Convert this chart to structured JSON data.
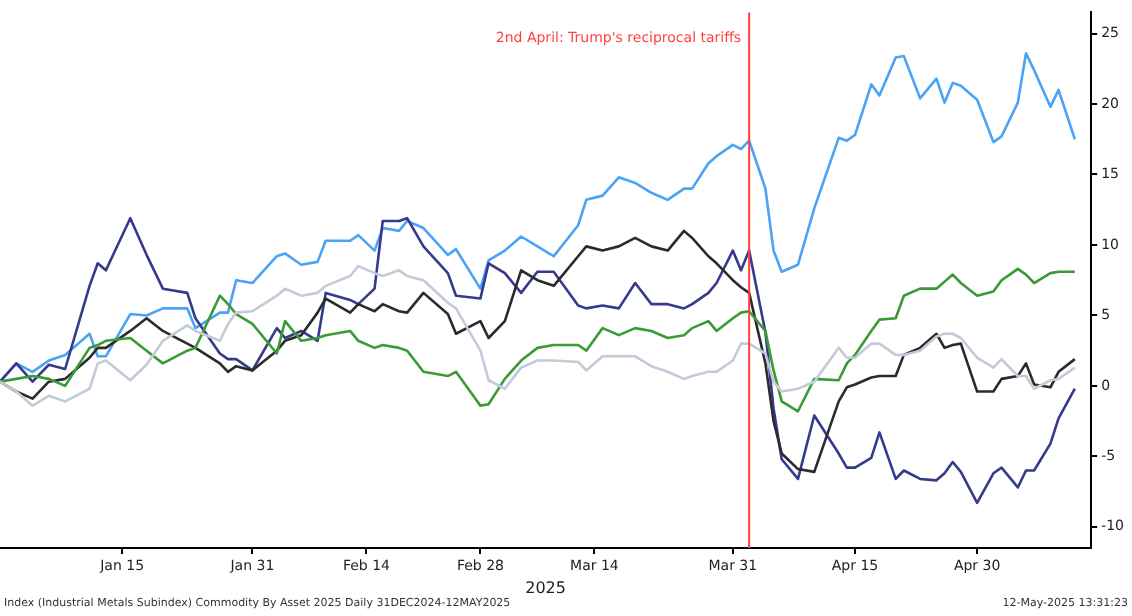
{
  "chart_data": {
    "type": "line",
    "x": [
      "2024-12-31",
      "2025-01-02",
      "2025-01-04",
      "2025-01-06",
      "2025-01-08",
      "2025-01-11",
      "2025-01-12",
      "2025-01-13",
      "2025-01-16",
      "2025-01-18",
      "2025-01-20",
      "2025-01-23",
      "2025-01-24",
      "2025-01-27",
      "2025-01-28",
      "2025-01-29",
      "2025-01-31",
      "2025-02-03",
      "2025-02-04",
      "2025-02-06",
      "2025-02-08",
      "2025-02-09",
      "2025-02-12",
      "2025-02-13",
      "2025-02-15",
      "2025-02-16",
      "2025-02-18",
      "2025-02-19",
      "2025-02-21",
      "2025-02-24",
      "2025-02-25",
      "2025-02-28",
      "2025-03-01",
      "2025-03-03",
      "2025-03-05",
      "2025-03-07",
      "2025-03-09",
      "2025-03-12",
      "2025-03-13",
      "2025-03-15",
      "2025-03-17",
      "2025-03-19",
      "2025-03-21",
      "2025-03-23",
      "2025-03-25",
      "2025-03-26",
      "2025-03-28",
      "2025-03-29",
      "2025-03-31",
      "2025-04-01",
      "2025-04-02",
      "2025-04-04",
      "2025-04-05",
      "2025-04-06",
      "2025-04-08",
      "2025-04-10",
      "2025-04-13",
      "2025-04-14",
      "2025-04-15",
      "2025-04-17",
      "2025-04-18",
      "2025-04-20",
      "2025-04-21",
      "2025-04-23",
      "2025-04-25",
      "2025-04-26",
      "2025-04-27",
      "2025-04-28",
      "2025-04-30",
      "2025-05-02",
      "2025-05-03",
      "2025-05-05",
      "2025-05-06",
      "2025-05-07",
      "2025-05-09",
      "2025-05-10",
      "2025-05-12"
    ],
    "series": [
      {
        "color": "#c3cad8",
        "values": [
          0.3,
          -0.4,
          -1.4,
          -0.7,
          -1.1,
          -0.2,
          1.6,
          1.8,
          0.4,
          1.5,
          3.2,
          4.3,
          3.9,
          3.2,
          4.4,
          5.2,
          5.3,
          6.4,
          6.9,
          6.4,
          6.6,
          7.1,
          7.8,
          8.5,
          8.0,
          7.8,
          8.2,
          7.8,
          7.5,
          5.9,
          5.5,
          2.5,
          0.4,
          -0.2,
          1.3,
          1.8,
          1.8,
          1.7,
          1.1,
          2.1,
          2.1,
          2.1,
          1.4,
          1.0,
          0.5,
          0.7,
          1.0,
          1.0,
          1.8,
          3.0,
          3.0,
          2.3,
          0.3,
          -0.4,
          -0.2,
          0.3,
          2.7,
          2.0,
          2.0,
          3.0,
          3.0,
          2.2,
          2.2,
          2.5,
          3.5,
          3.7,
          3.7,
          3.4,
          2.0,
          1.3,
          1.9,
          0.7,
          0.7,
          -0.2,
          0.4,
          0.5,
          1.3
        ]
      },
      {
        "color": "#3a9a36",
        "values": [
          0.3,
          0.5,
          0.7,
          0.5,
          0.0,
          2.7,
          2.9,
          3.2,
          3.4,
          2.5,
          1.6,
          2.5,
          2.7,
          6.4,
          5.8,
          5.1,
          4.4,
          2.3,
          4.6,
          3.2,
          3.4,
          3.6,
          3.9,
          3.2,
          2.7,
          2.9,
          2.7,
          2.5,
          1.0,
          0.7,
          1.0,
          -1.4,
          -1.3,
          0.5,
          1.8,
          2.7,
          2.9,
          2.9,
          2.5,
          4.1,
          3.6,
          4.1,
          3.9,
          3.4,
          3.6,
          4.1,
          4.6,
          3.9,
          4.8,
          5.2,
          5.3,
          3.9,
          1.1,
          -1.1,
          -1.8,
          0.5,
          0.4,
          1.6,
          2.2,
          3.9,
          4.7,
          4.8,
          6.4,
          6.9,
          6.9,
          7.4,
          7.9,
          7.3,
          6.4,
          6.7,
          7.5,
          8.3,
          7.9,
          7.3,
          8.0,
          8.1,
          8.1
        ]
      },
      {
        "color": "#2b2b2e",
        "values": [
          0.3,
          -0.4,
          -0.9,
          0.3,
          0.5,
          2.0,
          2.7,
          2.7,
          3.9,
          4.8,
          3.9,
          3.0,
          2.7,
          1.6,
          1.0,
          1.4,
          1.1,
          2.5,
          3.2,
          3.6,
          5.2,
          6.2,
          5.2,
          5.8,
          5.3,
          5.8,
          5.3,
          5.2,
          6.6,
          5.1,
          3.7,
          4.6,
          3.4,
          4.6,
          8.2,
          7.5,
          7.1,
          9.2,
          9.9,
          9.6,
          9.9,
          10.5,
          9.9,
          9.6,
          11.0,
          10.5,
          9.2,
          8.7,
          7.5,
          7.0,
          6.6,
          1.6,
          -2.5,
          -4.8,
          -5.9,
          -6.1,
          -1.1,
          -0.1,
          0.1,
          0.6,
          0.7,
          0.7,
          2.2,
          2.7,
          3.7,
          2.7,
          2.9,
          3.0,
          -0.4,
          -0.4,
          0.5,
          0.7,
          1.6,
          0.1,
          -0.1,
          1.0,
          1.9
        ]
      },
      {
        "color": "#363a8c",
        "values": [
          0.3,
          1.6,
          0.3,
          1.5,
          1.2,
          7.1,
          8.7,
          8.2,
          11.9,
          9.3,
          6.9,
          6.6,
          4.8,
          2.3,
          1.9,
          1.9,
          1.1,
          4.1,
          3.4,
          3.9,
          3.2,
          6.6,
          6.1,
          5.8,
          6.9,
          11.7,
          11.7,
          11.9,
          9.9,
          8.0,
          6.4,
          6.2,
          8.7,
          8.0,
          6.6,
          8.1,
          8.1,
          5.7,
          5.5,
          5.7,
          5.5,
          7.3,
          5.8,
          5.8,
          5.5,
          5.8,
          6.6,
          7.3,
          9.6,
          8.2,
          9.6,
          3.8,
          -1.6,
          -5.2,
          -6.6,
          -2.1,
          -4.8,
          -5.8,
          -5.8,
          -5.1,
          -3.3,
          -6.6,
          -6.0,
          -6.6,
          -6.7,
          -6.2,
          -5.4,
          -6.1,
          -8.3,
          -6.2,
          -5.8,
          -7.2,
          -6.0,
          -6.0,
          -4.1,
          -2.3,
          -0.2
        ]
      },
      {
        "color": "#4aa3f5",
        "values": [
          0.3,
          1.6,
          1.0,
          1.8,
          2.2,
          3.7,
          2.1,
          2.1,
          5.1,
          5.0,
          5.5,
          5.5,
          4.1,
          5.2,
          5.2,
          7.5,
          7.3,
          9.2,
          9.4,
          8.6,
          8.8,
          10.3,
          10.3,
          10.7,
          9.6,
          11.2,
          11.0,
          11.7,
          11.2,
          9.3,
          9.7,
          6.9,
          8.9,
          9.6,
          10.6,
          9.9,
          9.2,
          11.4,
          13.2,
          13.5,
          14.8,
          14.4,
          13.7,
          13.2,
          14.0,
          14.0,
          15.8,
          16.3,
          17.1,
          16.8,
          17.4,
          14.0,
          9.6,
          8.1,
          8.6,
          12.6,
          17.6,
          17.4,
          17.8,
          21.4,
          20.6,
          23.3,
          23.4,
          20.4,
          21.8,
          20.1,
          21.5,
          21.3,
          20.3,
          17.3,
          17.7,
          20.1,
          23.6,
          22.4,
          19.8,
          21.0,
          17.5
        ]
      }
    ],
    "xlabel": "2025",
    "xlim": [
      "2024-12-31",
      "2025-05-14"
    ],
    "xticks": [
      {
        "value": "2025-01-15",
        "label": "Jan 15"
      },
      {
        "value": "2025-01-31",
        "label": "Jan 31"
      },
      {
        "value": "2025-02-14",
        "label": "Feb 14"
      },
      {
        "value": "2025-02-28",
        "label": "Feb 28"
      },
      {
        "value": "2025-03-14",
        "label": "Mar 14"
      },
      {
        "value": "2025-03-31",
        "label": "Mar 31"
      },
      {
        "value": "2025-04-15",
        "label": "Apr 15"
      },
      {
        "value": "2025-04-30",
        "label": "Apr 30"
      }
    ],
    "ylim": [
      -11.5,
      26.5
    ],
    "yticks": [
      {
        "value": 25,
        "label": "25"
      },
      {
        "value": 20,
        "label": "20"
      },
      {
        "value": 15,
        "label": "15"
      },
      {
        "value": 10,
        "label": "10"
      },
      {
        "value": 5,
        "label": "5"
      },
      {
        "value": 0,
        "label": "0"
      },
      {
        "value": -5,
        "label": "-5"
      },
      {
        "value": -10,
        "label": "-10"
      }
    ],
    "ref_lines": [
      {
        "axis": "x",
        "value": "2025-04-02",
        "label": "2nd April: Trump's reciprocal tariffs",
        "color": "#ff4040"
      }
    ],
    "annotations": [
      "Index (Industrial Metals Subindex) Commodity By Asset 2025  Daily 31DEC2024-12MAY2025",
      "12-May-2025 13:31:23"
    ],
    "grid": false,
    "legend": false,
    "marker": "none",
    "line_style": "solid"
  }
}
